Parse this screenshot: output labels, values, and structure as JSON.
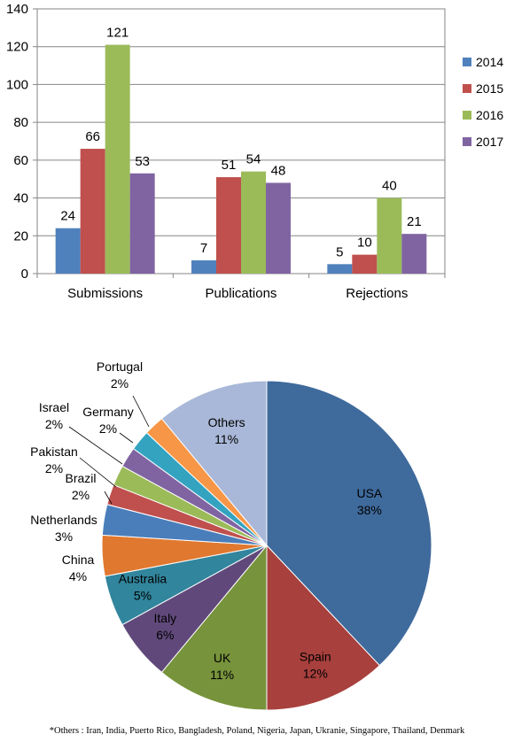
{
  "chart_data": [
    {
      "type": "bar",
      "categories": [
        "Submissions",
        "Publications",
        "Rejections"
      ],
      "series": [
        {
          "name": "2014",
          "values": [
            24,
            7,
            5
          ],
          "color": "#4F81BD"
        },
        {
          "name": "2015",
          "values": [
            66,
            51,
            10
          ],
          "color": "#C0504D"
        },
        {
          "name": "2016",
          "values": [
            121,
            54,
            40
          ],
          "color": "#9BBB59"
        },
        {
          "name": "2017",
          "values": [
            53,
            48,
            21
          ],
          "color": "#8064A2"
        }
      ],
      "yticks": [
        "0",
        "20",
        "40",
        "60",
        "80",
        "100",
        "120",
        "140"
      ],
      "ylim": [
        0,
        140
      ],
      "grid": true,
      "legend_position": "right"
    },
    {
      "type": "pie",
      "slices": [
        {
          "label": "USA",
          "value": 38,
          "pct": "38%",
          "color": "#3F6A9C"
        },
        {
          "label": "Spain",
          "value": 12,
          "pct": "12%",
          "color": "#A8403D"
        },
        {
          "label": "UK",
          "value": 11,
          "pct": "11%",
          "color": "#77933C"
        },
        {
          "label": "Italy",
          "value": 6,
          "pct": "6%",
          "color": "#60497A"
        },
        {
          "label": "Australia",
          "value": 5,
          "pct": "5%",
          "color": "#31859C"
        },
        {
          "label": "China",
          "value": 4,
          "pct": "4%",
          "color": "#E0782F"
        },
        {
          "label": "Netherlands",
          "value": 3,
          "pct": "3%",
          "color": "#4A7EBB"
        },
        {
          "label": "Brazil",
          "value": 2,
          "pct": "2%",
          "color": "#C0504D"
        },
        {
          "label": "Pakistan",
          "value": 2,
          "pct": "2%",
          "color": "#9BBB59"
        },
        {
          "label": "Israel",
          "value": 2,
          "pct": "2%",
          "color": "#8064A2"
        },
        {
          "label": "Germany",
          "value": 2,
          "pct": "2%",
          "color": "#33A3C0"
        },
        {
          "label": "Portugal",
          "value": 2,
          "pct": "2%",
          "color": "#F79646"
        },
        {
          "label": "Others",
          "value": 11,
          "pct": "11%",
          "color": "#A9B8D8"
        }
      ]
    }
  ],
  "footnote": "*Others : Iran, India, Puerto Rico, Bangladesh, Poland, Nigeria, Japan, Ukranie, Singapore, Thailand, Denmark"
}
